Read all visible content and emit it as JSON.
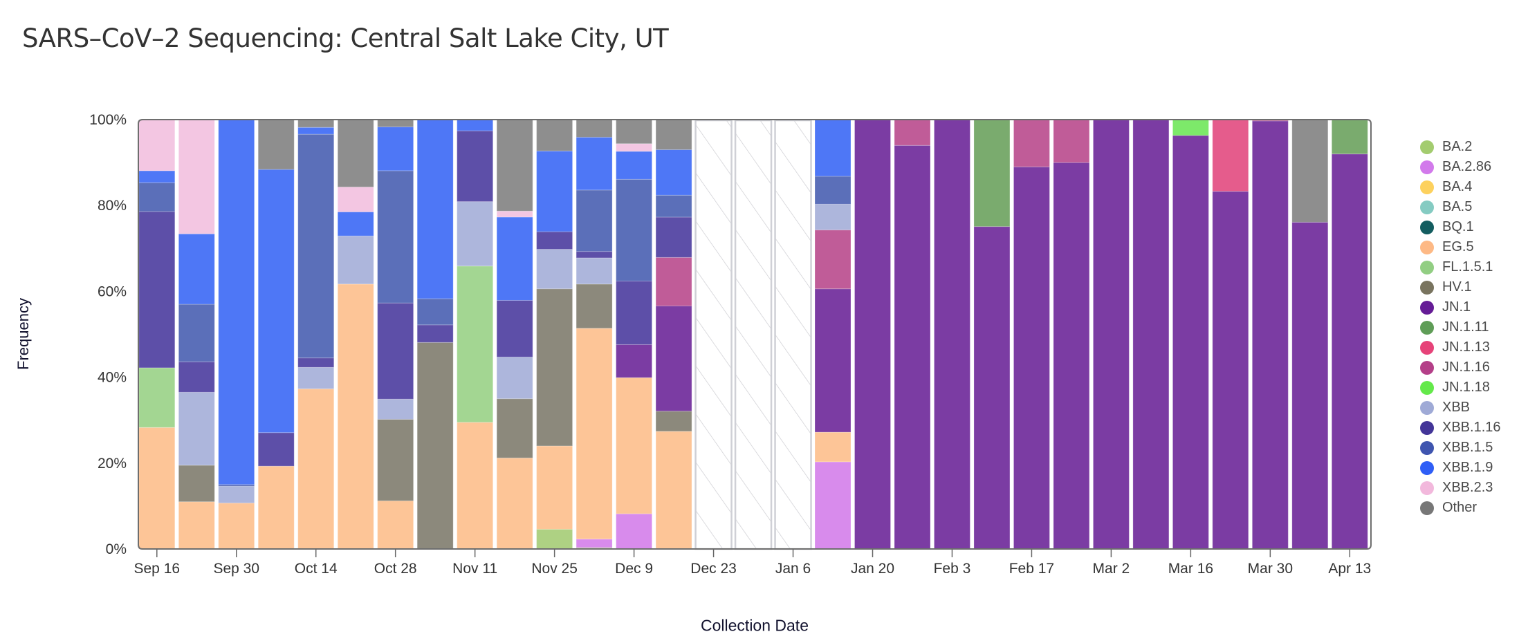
{
  "title": "SARS–CoV–2 Sequencing: Central Salt Lake City, UT",
  "chart_data": {
    "type": "bar",
    "stacked": true,
    "title": "SARS–CoV–2 Sequencing: Central Salt Lake City, UT",
    "xlabel": "Collection Date",
    "ylabel": "Frequency",
    "ylim": [
      0,
      100
    ],
    "yticks": [
      "0%",
      "20%",
      "40%",
      "60%",
      "80%",
      "100%"
    ],
    "xtick_labels": [
      "Sep 16",
      "Sep 30",
      "Oct 14",
      "Oct 28",
      "Nov 11",
      "Nov 25",
      "Dec 9",
      "Dec 23",
      "Jan 6",
      "Jan 20",
      "Feb 3",
      "Feb 17",
      "Mar 2",
      "Mar 16",
      "Mar 30",
      "Apr 13"
    ],
    "legend_position": "right",
    "no_data_style": "hatched",
    "categories": [
      "Sep 16",
      "Sep 23",
      "Sep 30",
      "Oct 7",
      "Oct 14",
      "Oct 21",
      "Oct 28",
      "Nov 4",
      "Nov 11",
      "Nov 18",
      "Nov 25",
      "Dec 2",
      "Dec 9",
      "Dec 16",
      "Dec 23",
      "Dec 30",
      "Jan 6",
      "Jan 13",
      "Jan 20",
      "Jan 27",
      "Feb 3",
      "Feb 10",
      "Feb 17",
      "Feb 24",
      "Mar 2",
      "Mar 9",
      "Mar 16",
      "Mar 23",
      "Mar 30",
      "Apr 6",
      "Apr 13"
    ],
    "no_data": [
      "Dec 23",
      "Dec 30",
      "Jan 6"
    ],
    "series": [
      {
        "name": "BA.2",
        "color": "#aed183",
        "legend_color": "#a3cc6f",
        "values": [
          0,
          0,
          0,
          0,
          0,
          0,
          0,
          0,
          0,
          0,
          4.6,
          0.3,
          0,
          0,
          null,
          null,
          null,
          0,
          0,
          0,
          0,
          0,
          0,
          0,
          0,
          0,
          0,
          0,
          0,
          0,
          0
        ]
      },
      {
        "name": "BA.2.86",
        "color": "#d88bec",
        "legend_color": "#d27aeb",
        "values": [
          0,
          0,
          0,
          0,
          0,
          0,
          0,
          0,
          0,
          0,
          0,
          2.0,
          8.2,
          0,
          null,
          null,
          null,
          20.3,
          0,
          0,
          0,
          0,
          0,
          0,
          0,
          0,
          0,
          0,
          0,
          0,
          0
        ]
      },
      {
        "name": "BA.4",
        "color": "#fdd469",
        "legend_color": "#fdd15e",
        "values": [
          0,
          0,
          0,
          0,
          0,
          0,
          0,
          0,
          0,
          0,
          0,
          0,
          0,
          0,
          null,
          null,
          null,
          0,
          0,
          0,
          0,
          0,
          0,
          0,
          0,
          0,
          0,
          0,
          0,
          0,
          0
        ]
      },
      {
        "name": "BA.5",
        "color": "#8dcfc6",
        "legend_color": "#85cbc2",
        "values": [
          0,
          0,
          0,
          0,
          0,
          0,
          0,
          0,
          0,
          0,
          0,
          0,
          0,
          0,
          null,
          null,
          null,
          0,
          0,
          0,
          0,
          0,
          0,
          0,
          0,
          0,
          0,
          0,
          0,
          0,
          0
        ]
      },
      {
        "name": "BQ.1",
        "color": "#1a6265",
        "legend_color": "#135d60",
        "values": [
          0,
          0,
          0,
          0,
          0,
          0,
          0,
          0,
          0,
          0,
          0,
          0,
          0,
          0,
          null,
          null,
          null,
          0,
          0,
          0,
          0,
          0,
          0,
          0,
          0,
          0,
          0,
          0,
          0,
          0,
          0
        ]
      },
      {
        "name": "EG.5",
        "color": "#fdc597",
        "legend_color": "#fdb985",
        "values": [
          28.3,
          11.0,
          10.7,
          19.3,
          37.3,
          61.7,
          11.2,
          0,
          29.5,
          21.2,
          19.4,
          49.1,
          31.7,
          27.4,
          null,
          null,
          null,
          6.9,
          0,
          0,
          0,
          0,
          0,
          0,
          0,
          0,
          0,
          0,
          0,
          0,
          0
        ]
      },
      {
        "name": "FL.1.5.1",
        "color": "#a3d692",
        "legend_color": "#92ce83",
        "values": [
          13.9,
          0,
          0,
          0,
          0,
          0,
          0,
          0,
          36.4,
          0,
          0,
          0,
          0,
          0,
          null,
          null,
          null,
          0,
          0,
          0,
          0,
          0,
          0,
          0,
          0,
          0,
          0,
          0,
          0,
          0,
          0
        ]
      },
      {
        "name": "HV.1",
        "color": "#8c897c",
        "legend_color": "#79745f",
        "values": [
          0,
          8.5,
          0,
          0,
          0,
          0,
          19.0,
          48.1,
          0,
          13.8,
          36.6,
          10.3,
          0,
          4.7,
          null,
          null,
          null,
          0,
          0,
          0,
          0,
          0,
          0,
          0,
          0,
          0,
          0,
          0,
          0,
          0,
          0
        ]
      },
      {
        "name": "JN.1",
        "color": "#7b3ca3",
        "legend_color": "#651c96",
        "values": [
          0,
          0,
          0,
          0,
          0,
          0,
          0,
          0,
          0,
          0,
          0,
          0,
          7.7,
          24.5,
          null,
          null,
          null,
          33.4,
          100,
          94.0,
          100,
          75.1,
          89.0,
          90.0,
          100,
          100,
          96.3,
          83.3,
          99.7,
          76.1,
          92.0
        ]
      },
      {
        "name": "JN.1.11",
        "color": "#7aab6e",
        "legend_color": "#5f9d57",
        "values": [
          0,
          0,
          0,
          0,
          0,
          0,
          0,
          0,
          0,
          0,
          0,
          0,
          0,
          0,
          null,
          null,
          null,
          0,
          0,
          0,
          0,
          24.9,
          0,
          0,
          0,
          0,
          0,
          0,
          0,
          0,
          8.0
        ]
      },
      {
        "name": "JN.1.13",
        "color": "#e55c8c",
        "legend_color": "#e64379",
        "values": [
          0,
          0,
          0,
          0,
          0,
          0,
          0,
          0,
          0,
          0,
          0,
          0,
          0,
          0,
          null,
          null,
          null,
          0,
          0,
          0,
          0,
          0,
          0,
          0,
          0,
          0,
          0,
          16.7,
          0,
          0,
          0
        ]
      },
      {
        "name": "JN.1.16",
        "color": "#c05c98",
        "legend_color": "#b43f88",
        "values": [
          0,
          0,
          0,
          0,
          0,
          0,
          0,
          0,
          0,
          0,
          0,
          0,
          0,
          11.3,
          null,
          null,
          null,
          13.7,
          0,
          6.0,
          0,
          0,
          11.0,
          10.0,
          0,
          0,
          0,
          0,
          0.3,
          0,
          0
        ]
      },
      {
        "name": "JN.1.18",
        "color": "#7de96a",
        "legend_color": "#64e94a",
        "values": [
          0,
          0,
          0,
          0,
          0,
          0,
          0,
          0,
          0,
          0,
          0,
          0,
          0,
          0,
          null,
          null,
          null,
          0,
          0,
          0,
          0,
          0,
          0,
          0,
          0,
          0,
          3.7,
          0,
          0,
          0,
          0
        ]
      },
      {
        "name": "XBB",
        "color": "#adb6dc",
        "legend_color": "#9faad6",
        "values": [
          0,
          17.0,
          3.9,
          0,
          5.0,
          11.2,
          4.7,
          0,
          15.0,
          9.7,
          9.2,
          6.1,
          0,
          0,
          null,
          null,
          null,
          6.0,
          0,
          0,
          0,
          0,
          0,
          0,
          0,
          0,
          0,
          0,
          0,
          0,
          0
        ]
      },
      {
        "name": "XBB.1.16",
        "color": "#5d4fa8",
        "legend_color": "#433598",
        "values": [
          36.4,
          7.1,
          0,
          7.8,
          2.2,
          0,
          22.4,
          4.1,
          16.5,
          13.2,
          4.1,
          1.5,
          14.8,
          9.4,
          null,
          null,
          null,
          0,
          0,
          0,
          0,
          0,
          0,
          0,
          0,
          0,
          0,
          0,
          0,
          0,
          0
        ]
      },
      {
        "name": "XBB.1.5",
        "color": "#5b6fb9",
        "legend_color": "#3f55af",
        "values": [
          6.7,
          13.4,
          0.4,
          0,
          52.1,
          0,
          30.8,
          6.1,
          0,
          0,
          0,
          14.3,
          23.7,
          5.1,
          null,
          null,
          null,
          6.5,
          0,
          0,
          0,
          0,
          0,
          0,
          0,
          0,
          0,
          0,
          0,
          0,
          0
        ]
      },
      {
        "name": "XBB.1.9",
        "color": "#4e77f6",
        "legend_color": "#2f5ef6",
        "values": [
          2.8,
          16.4,
          85.0,
          61.3,
          1.6,
          5.6,
          10.2,
          41.7,
          2.6,
          19.4,
          18.8,
          12.3,
          6.5,
          10.6,
          null,
          null,
          null,
          13.2,
          0,
          0,
          0,
          0,
          0,
          0,
          0,
          0,
          0,
          0,
          0,
          0,
          0
        ]
      },
      {
        "name": "XBB.2.3",
        "color": "#f3c6e2",
        "legend_color": "#f2b8dc",
        "values": [
          11.9,
          26.6,
          0,
          0,
          0,
          5.8,
          0,
          0,
          0,
          1.4,
          0,
          0,
          1.8,
          0,
          null,
          null,
          null,
          0,
          0,
          0,
          0,
          0,
          0,
          0,
          0,
          0,
          0,
          0,
          0,
          0,
          0
        ]
      },
      {
        "name": "Other",
        "color": "#8e8e8e",
        "legend_color": "#777777",
        "values": [
          0,
          0,
          0,
          11.6,
          1.9,
          15.7,
          1.8,
          0,
          0,
          21.4,
          7.3,
          4.1,
          5.6,
          7.0,
          null,
          null,
          null,
          0,
          0,
          0,
          0,
          0,
          0,
          0,
          0,
          0,
          0,
          0,
          0,
          23.9,
          0
        ]
      }
    ]
  }
}
